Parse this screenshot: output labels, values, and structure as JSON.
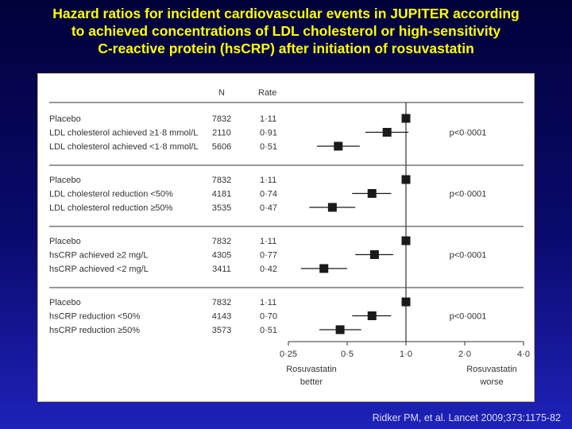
{
  "title": {
    "lines": [
      "Hazard ratios for incident cardiovascular events in JUPITER according",
      "to achieved concentrations of LDL cholesterol or high-sensitivity",
      "C-reactive protein (hsCRP) after initiation of rosuvastatin"
    ]
  },
  "citation": "Ridker PM, et al. Lancet 2009;373:1175-82",
  "colors": {
    "title": "#ffff00",
    "marker": "#1a1a1a",
    "axis": "#333333"
  },
  "chart_data": {
    "type": "forest",
    "scale": "log",
    "xlim": [
      0.25,
      4.0
    ],
    "reference_line": 1.0,
    "column_headers": {
      "n": "N",
      "rate": "Rate"
    },
    "ticks": [
      {
        "value": 0.25,
        "label": "0·25"
      },
      {
        "value": 0.5,
        "label": "0·5"
      },
      {
        "value": 1.0,
        "label": "1·0"
      },
      {
        "value": 2.0,
        "label": "2·0"
      },
      {
        "value": 4.0,
        "label": "4·0"
      }
    ],
    "x_annotations": {
      "left": [
        "Rosuvastatin",
        "better"
      ],
      "right": [
        "Rosuvastatin",
        "worse"
      ]
    },
    "groups": [
      {
        "p_value": "p<0·0001",
        "rows": [
          {
            "label": "Placebo",
            "n": "7832",
            "rate": "1·11",
            "hr": 1.0,
            "ci": [
              1.0,
              1.0
            ]
          },
          {
            "label": "LDL cholesterol achieved ≥1·8 mmol/L",
            "n": "2110",
            "rate": "0·91",
            "hr": 0.8,
            "ci": [
              0.62,
              1.03
            ]
          },
          {
            "label": "LDL cholesterol achieved <1·8 mmol/L",
            "n": "5606",
            "rate": "0·51",
            "hr": 0.45,
            "ci": [
              0.35,
              0.58
            ]
          }
        ]
      },
      {
        "p_value": "p<0·0001",
        "rows": [
          {
            "label": "Placebo",
            "n": "7832",
            "rate": "1·11",
            "hr": 1.0,
            "ci": [
              1.0,
              1.0
            ]
          },
          {
            "label": "LDL cholesterol reduction <50%",
            "n": "4181",
            "rate": "0·74",
            "hr": 0.67,
            "ci": [
              0.53,
              0.84
            ]
          },
          {
            "label": "LDL cholesterol reduction ≥50%",
            "n": "3535",
            "rate": "0·47",
            "hr": 0.42,
            "ci": [
              0.32,
              0.55
            ]
          }
        ]
      },
      {
        "p_value": "p<0·0001",
        "rows": [
          {
            "label": "Placebo",
            "n": "7832",
            "rate": "1·11",
            "hr": 1.0,
            "ci": [
              1.0,
              1.0
            ]
          },
          {
            "label": "hsCRP achieved ≥2 mg/L",
            "n": "4305",
            "rate": "0·77",
            "hr": 0.69,
            "ci": [
              0.55,
              0.86
            ]
          },
          {
            "label": "hsCRP achieved <2 mg/L",
            "n": "3411",
            "rate": "0·42",
            "hr": 0.38,
            "ci": [
              0.29,
              0.5
            ]
          }
        ]
      },
      {
        "p_value": "p<0·0001",
        "rows": [
          {
            "label": "Placebo",
            "n": "7832",
            "rate": "1·11",
            "hr": 1.0,
            "ci": [
              1.0,
              1.0
            ]
          },
          {
            "label": "hsCRP reduction <50%",
            "n": "4143",
            "rate": "0·70",
            "hr": 0.67,
            "ci": [
              0.53,
              0.84
            ]
          },
          {
            "label": "hsCRP reduction ≥50%",
            "n": "3573",
            "rate": "0·51",
            "hr": 0.46,
            "ci": [
              0.36,
              0.59
            ]
          }
        ]
      }
    ]
  }
}
